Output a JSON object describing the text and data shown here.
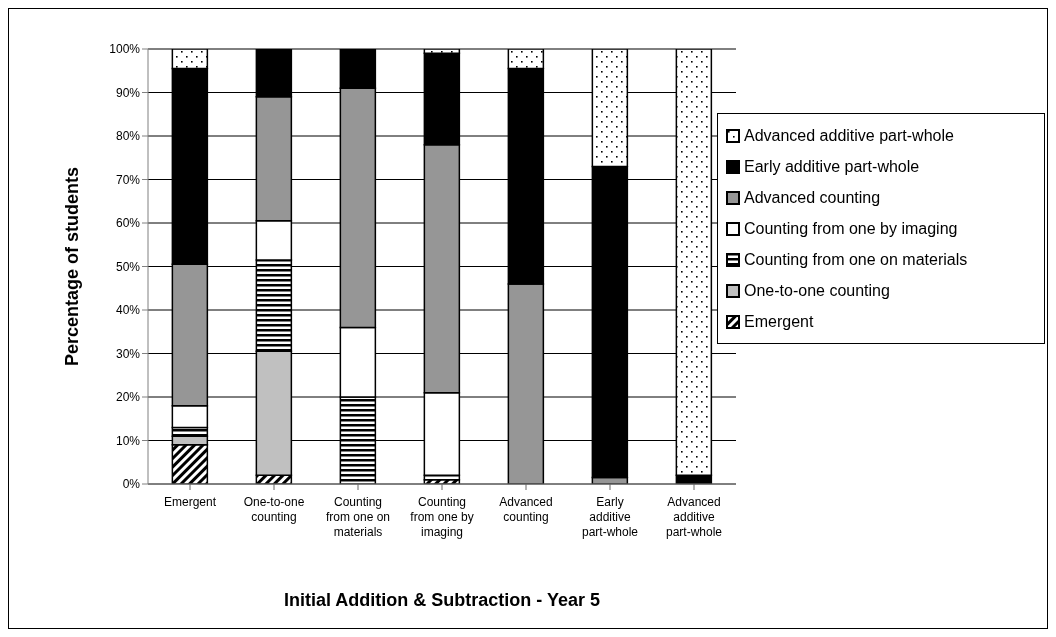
{
  "chart_data": {
    "type": "bar",
    "stacked": true,
    "xlabel": "Initial Addition & Subtraction - Year 5",
    "ylabel": "Percentage of students",
    "categories": [
      "Emergent",
      "One-to-one counting",
      "Counting from one on materials",
      "Counting from one by imaging",
      "Advanced counting",
      "Early additive part-whole",
      "Advanced additive part-whole"
    ],
    "series": [
      {
        "name": "Emergent",
        "color": "#000000",
        "values": [
          9,
          2,
          0,
          1,
          0,
          0,
          0
        ]
      },
      {
        "name": "One-to-one counting",
        "color": "#c0c0c0",
        "values": [
          2,
          28.5,
          0,
          0,
          0,
          0,
          0
        ]
      },
      {
        "name": "Counting from one on materials",
        "color": "#000000",
        "values": [
          2,
          21,
          20,
          1,
          0,
          0,
          0
        ]
      },
      {
        "name": "Counting from one by imaging",
        "color": "#ffffff",
        "values": [
          5,
          9,
          16,
          19,
          0,
          0,
          0
        ]
      },
      {
        "name": "Advanced counting",
        "color": "#969696",
        "values": [
          32.5,
          28.5,
          55,
          57,
          46,
          1.5,
          0
        ]
      },
      {
        "name": "Early additive part-whole",
        "color": "#000000",
        "values": [
          45,
          11,
          9,
          21,
          49.5,
          71.5,
          2
        ]
      },
      {
        "name": "Advanced additive part-whole",
        "color": "#000000",
        "values": [
          4.5,
          0,
          0,
          1,
          4.5,
          27,
          98
        ]
      }
    ],
    "ylim": [
      0,
      100
    ],
    "yticks": [
      {
        "value": 0,
        "label": "0%"
      },
      {
        "value": 10,
        "label": "10%"
      },
      {
        "value": 20,
        "label": "20%"
      },
      {
        "value": 30,
        "label": "30%"
      },
      {
        "value": 40,
        "label": "40%"
      },
      {
        "value": 50,
        "label": "50%"
      },
      {
        "value": 60,
        "label": "60%"
      },
      {
        "value": 70,
        "label": "70%"
      },
      {
        "value": 80,
        "label": "80%"
      },
      {
        "value": 90,
        "label": "90%"
      },
      {
        "value": 100,
        "label": "100%"
      }
    ],
    "grid": "y",
    "legend": "right"
  }
}
